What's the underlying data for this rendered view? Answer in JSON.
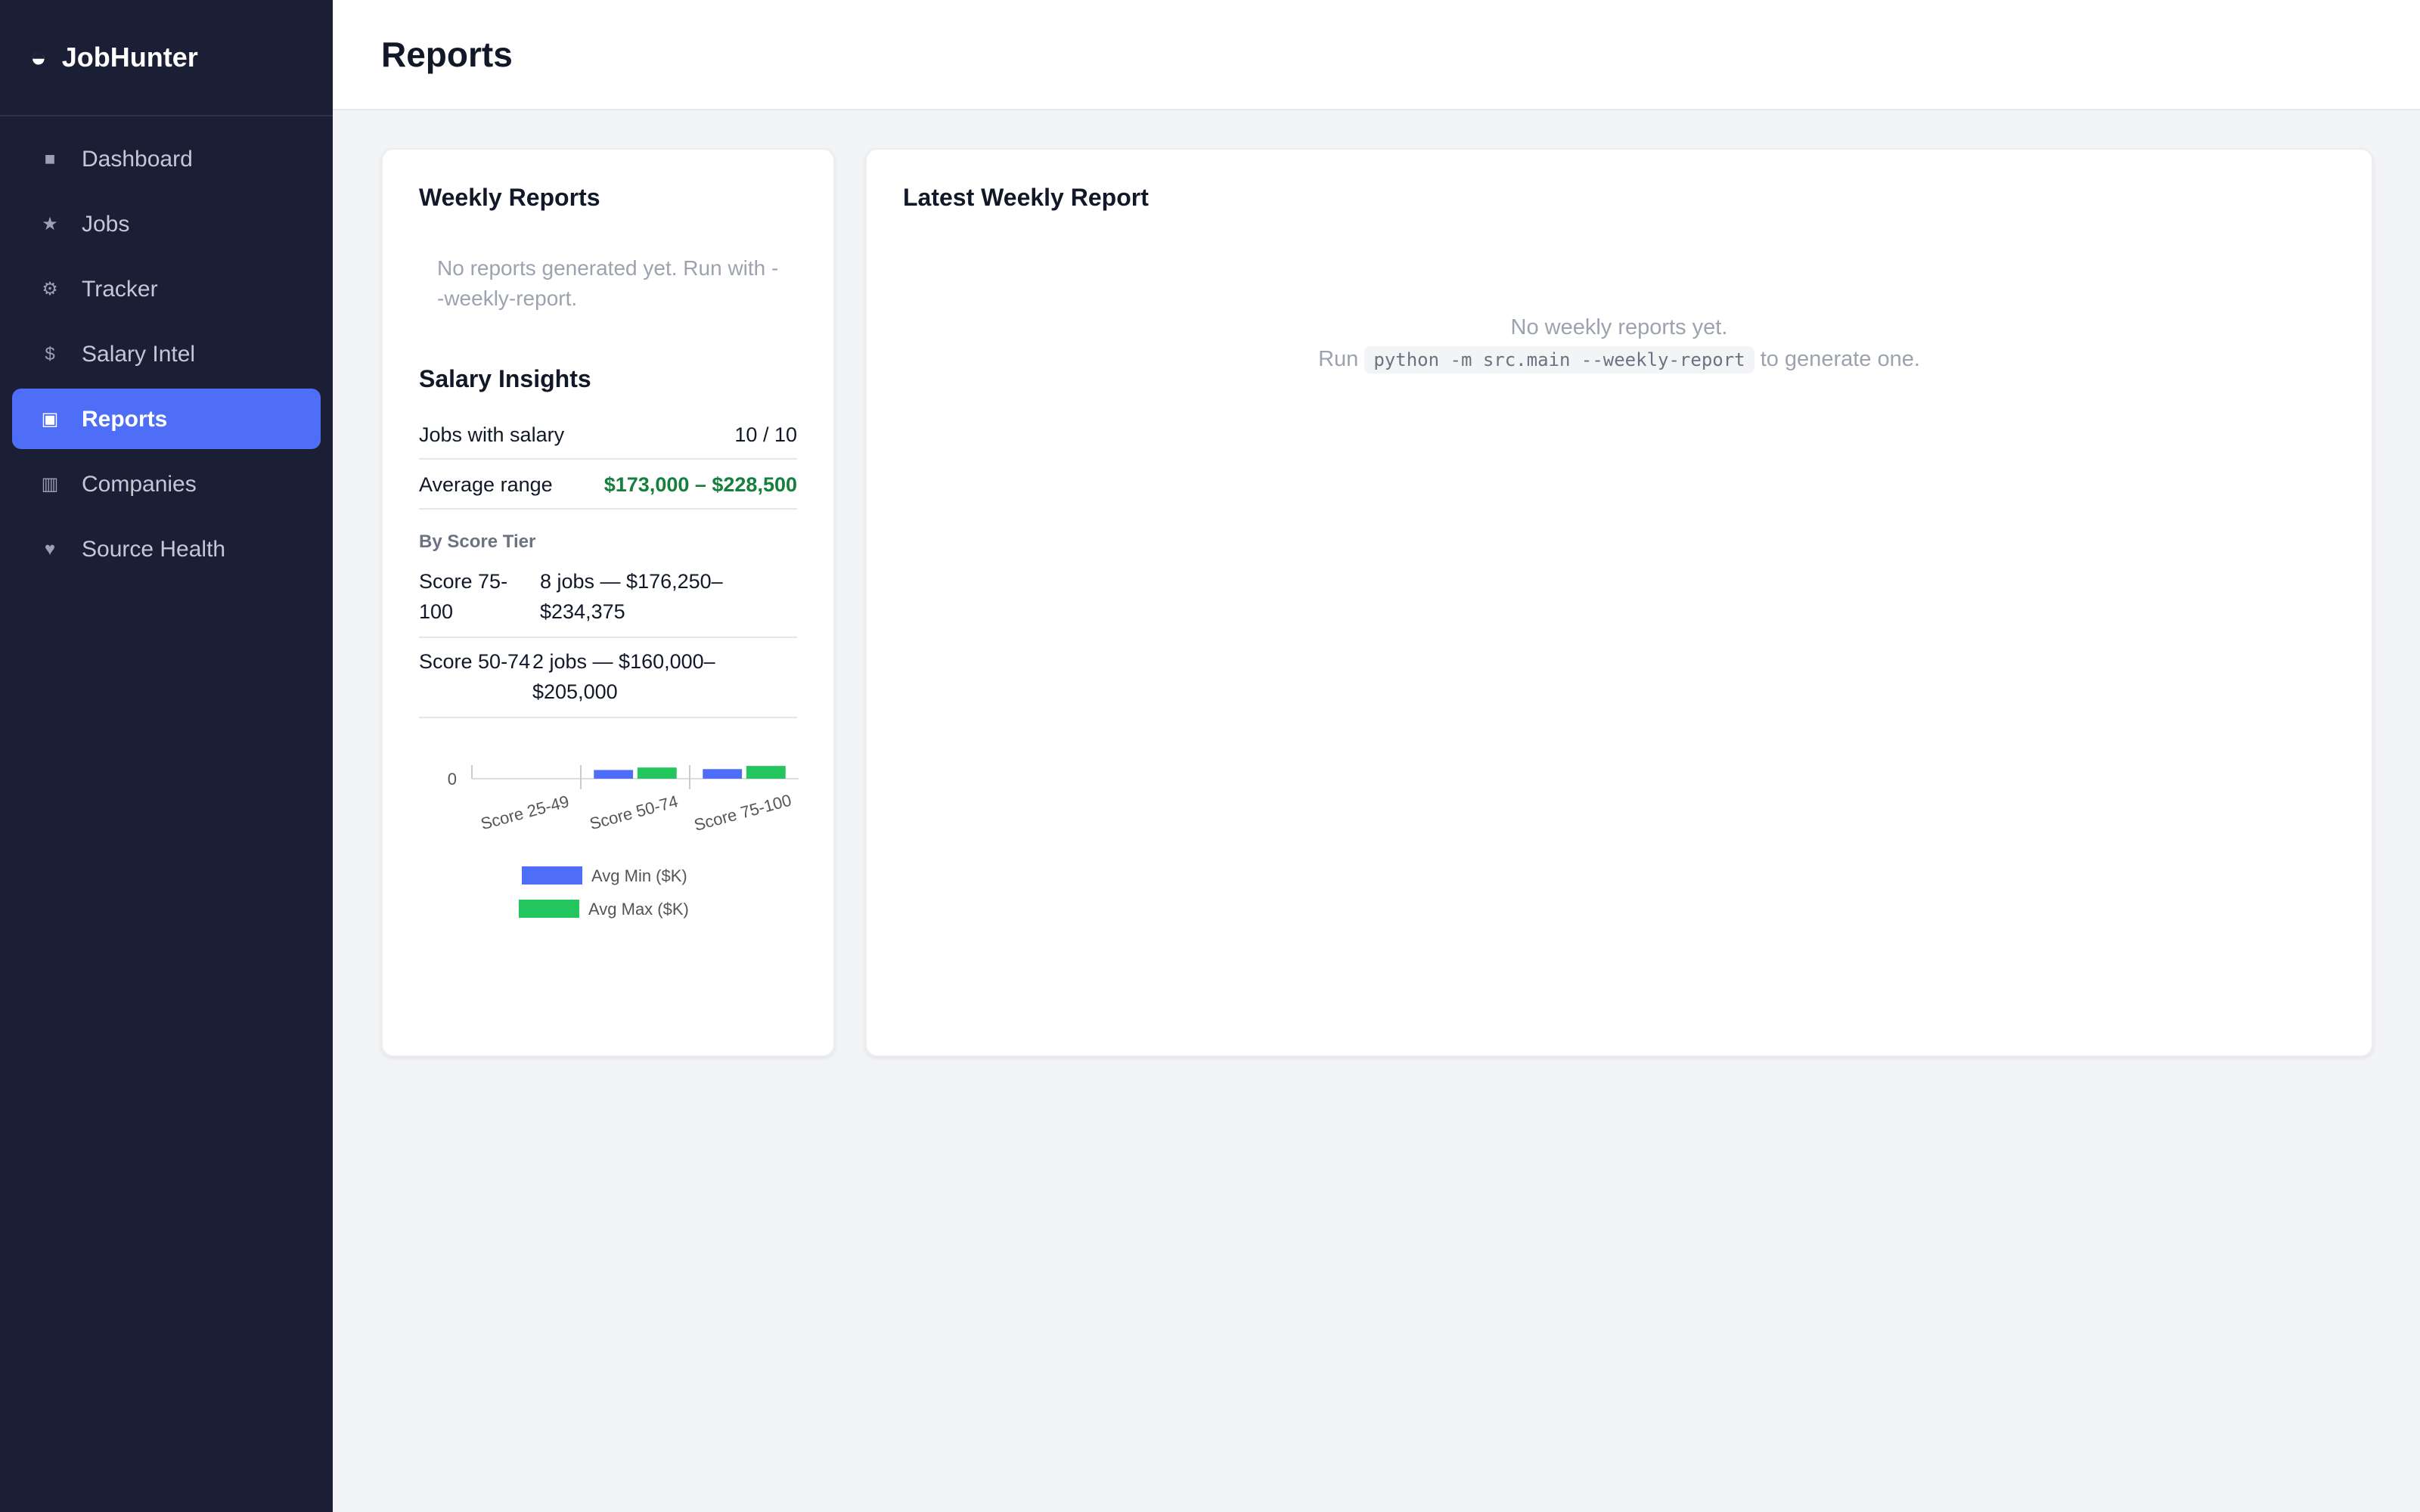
{
  "sidebar": {
    "logo_icon": "◒",
    "brand": "JobHunter",
    "nav": [
      {
        "icon": "■",
        "label": "Dashboard"
      },
      {
        "icon": "★",
        "label": "Jobs"
      },
      {
        "icon": "⚙",
        "label": "Tracker"
      },
      {
        "icon": "$",
        "label": "Salary Intel"
      },
      {
        "icon": "▣",
        "label": "Reports"
      },
      {
        "icon": "▥",
        "label": "Companies"
      },
      {
        "icon": "♥",
        "label": "Source Health"
      }
    ]
  },
  "header": {
    "title": "Reports"
  },
  "weekly_reports": {
    "title": "Weekly Reports",
    "empty": "No reports generated yet. Run with --weekly-report."
  },
  "salary_insights": {
    "title": "Salary Insights",
    "rows": [
      [
        "Jobs with salary",
        "10 / 10"
      ],
      [
        "Average range",
        "$173,000 – $228,500"
      ]
    ],
    "subtitle": "By Score Tier",
    "tiers": [
      [
        "Score 75-100",
        "8 jobs — $176,250–$234,375"
      ],
      [
        "Score 50-74",
        "2 jobs — $160,000–$205,000"
      ]
    ]
  },
  "latest": {
    "title": "Latest Weekly Report",
    "empty": "No weekly reports yet.",
    "run": "Run",
    "command": "python -m src.main --weekly-report",
    "suffix": "to generate one."
  },
  "chart_data": {
    "type": "bar",
    "categories": [
      "Score 25-49",
      "Score 50-74",
      "Score 75-100"
    ],
    "series": [
      {
        "name": "Avg Min ($K)",
        "color": "#4f6ef7",
        "values": [
          null,
          160,
          176.25
        ]
      },
      {
        "name": "Avg Max ($K)",
        "color": "#22c55e",
        "values": [
          null,
          205,
          234.375
        ]
      }
    ],
    "ylim": [
      0,
      250
    ],
    "yticks": [
      0
    ]
  }
}
